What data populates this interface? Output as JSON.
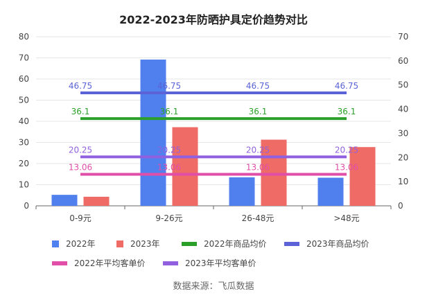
{
  "chart_data": {
    "type": "bar",
    "title": "2022-2023年防晒护具定价趋势对比",
    "categories": [
      "0-9元",
      "9-26元",
      "26-48元",
      ">48元"
    ],
    "y_left": {
      "min": 0,
      "max": 80,
      "ticks": [
        0,
        10,
        20,
        30,
        40,
        50,
        60,
        70,
        80
      ]
    },
    "y_right": {
      "min": 0,
      "max": 70,
      "ticks": [
        0,
        10,
        20,
        30,
        40,
        50,
        60,
        70
      ]
    },
    "series": [
      {
        "name": "2022年",
        "type": "bar",
        "axis": "left",
        "color": "#5080ee",
        "values": [
          5.2,
          69.2,
          13.5,
          13.3
        ]
      },
      {
        "name": "2023年",
        "type": "bar",
        "axis": "left",
        "color": "#ee6b66",
        "values": [
          4.3,
          37.2,
          31.3,
          27.8
        ]
      },
      {
        "name": "2022年商品均价",
        "type": "line",
        "axis": "right",
        "color": "#2aa02a",
        "value": 36.1,
        "labels": [
          "36.1",
          "36.1",
          "36.1",
          "36.1"
        ]
      },
      {
        "name": "2023年商品均价",
        "type": "line",
        "axis": "right",
        "color": "#5b63d6",
        "value": 46.75,
        "labels": [
          "46.75",
          "46.75",
          "46.75",
          "46.75"
        ]
      },
      {
        "name": "2022年平均客单价",
        "type": "line",
        "axis": "right",
        "color": "#e04ea8",
        "value": 13.06,
        "labels": [
          "13.06",
          "13.06",
          "13.06",
          "13.06"
        ]
      },
      {
        "name": "2023年平均客单价",
        "type": "line",
        "axis": "right",
        "color": "#9060e0",
        "value": 20.25,
        "labels": [
          "20.25",
          "20.25",
          "20.25",
          "20.25"
        ]
      }
    ],
    "source": "数据来源：飞瓜数据"
  }
}
